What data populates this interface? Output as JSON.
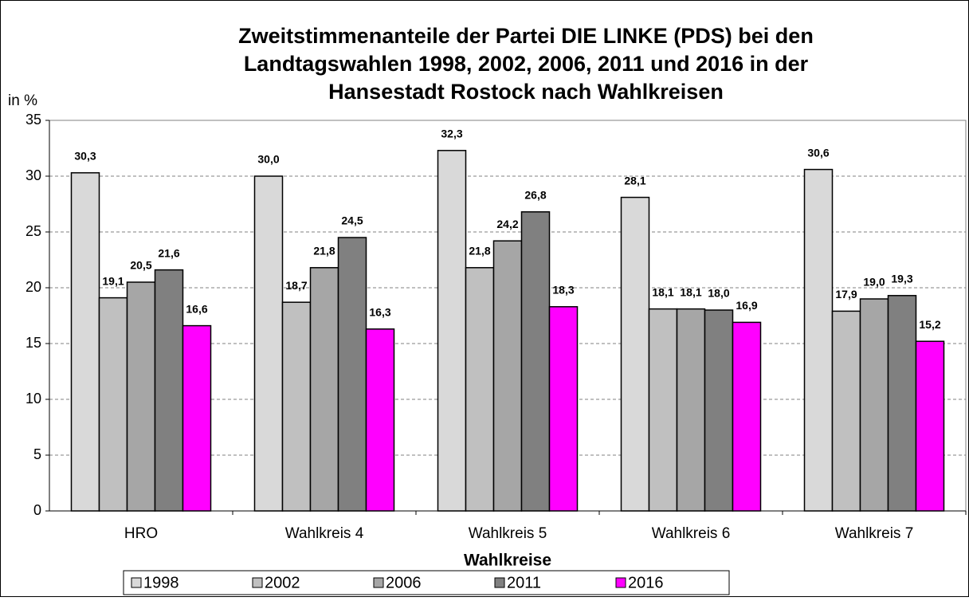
{
  "chart_data": {
    "type": "bar",
    "title_lines": [
      "Zweitstimmenanteile der Partei DIE LINKE (PDS) bei den",
      "Landtagswahlen 1998, 2002, 2006, 2011 und 2016 in der",
      "Hansestadt Rostock nach Wahlkreisen"
    ],
    "y_label": "in %",
    "x_label": "Wahlkreise",
    "categories": [
      "HRO",
      "Wahlkreis 4",
      "Wahlkreis 5",
      "Wahlkreis 6",
      "Wahlkreis 7"
    ],
    "series": [
      {
        "name": "1998",
        "color": "#d9d9d9",
        "values": [
          30.3,
          30.0,
          32.3,
          28.1,
          30.6
        ],
        "value_labels": [
          "30,3",
          "30,0",
          "32,3",
          "28,1",
          "30,6"
        ]
      },
      {
        "name": "2002",
        "color": "#c0c0c0",
        "values": [
          19.1,
          18.7,
          21.8,
          18.1,
          17.9
        ],
        "value_labels": [
          "19,1",
          "18,7",
          "21,8",
          "18,1",
          "17,9"
        ]
      },
      {
        "name": "2006",
        "color": "#a6a6a6",
        "values": [
          20.5,
          21.8,
          24.2,
          18.1,
          19.0
        ],
        "value_labels": [
          "20,5",
          "21,8",
          "24,2",
          "18,1",
          "19,0"
        ]
      },
      {
        "name": "2011",
        "color": "#808080",
        "values": [
          21.6,
          24.5,
          26.8,
          18.0,
          19.3
        ],
        "value_labels": [
          "21,6",
          "24,5",
          "26,8",
          "18,0",
          "19,3"
        ]
      },
      {
        "name": "2016",
        "color": "#ff00ff",
        "values": [
          16.6,
          16.3,
          18.3,
          16.9,
          15.2
        ],
        "value_labels": [
          "16,6",
          "16,3",
          "18,3",
          "16,9",
          "15,2"
        ]
      }
    ],
    "ylim": [
      0,
      35
    ],
    "yticks": [
      0,
      5,
      10,
      15,
      20,
      25,
      30,
      35
    ],
    "grid": true,
    "legend": "bottom"
  }
}
